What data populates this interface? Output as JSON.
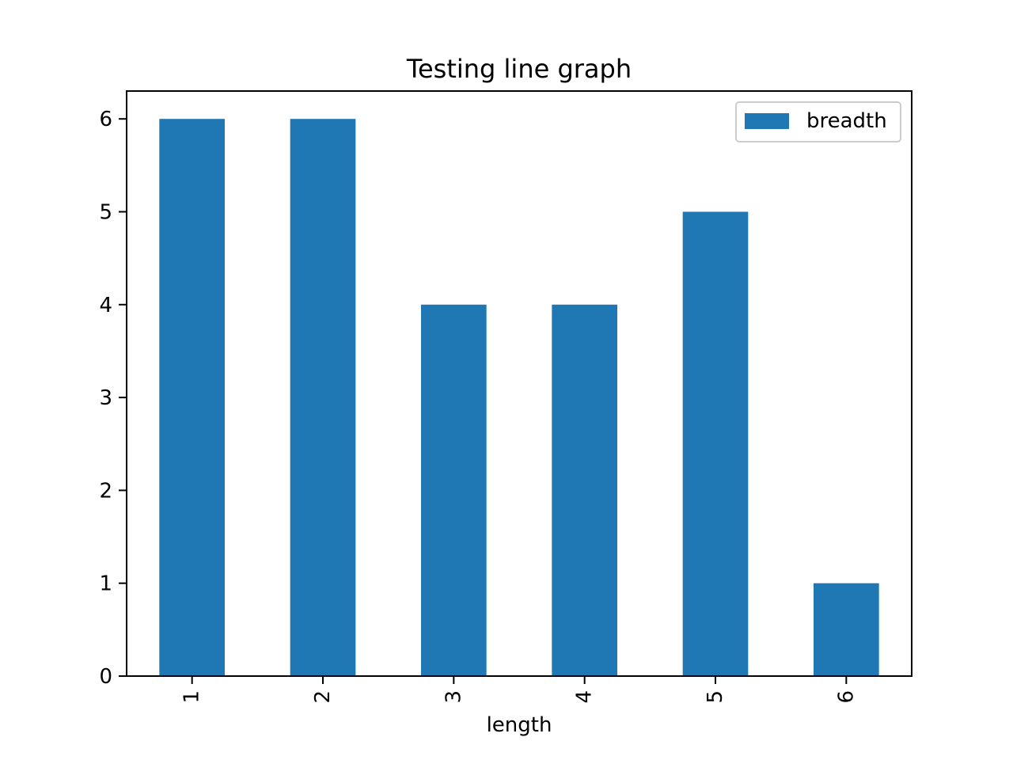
{
  "chart_data": {
    "type": "bar",
    "title": "Testing line graph",
    "xlabel": "length",
    "ylabel": "",
    "categories": [
      "1",
      "2",
      "3",
      "4",
      "5",
      "6"
    ],
    "series": [
      {
        "name": "breadth",
        "values": [
          6,
          6,
          4,
          4,
          5,
          1
        ],
        "color": "#1f77b4"
      }
    ],
    "ylim": [
      0,
      6.3
    ],
    "yticks": [
      "0",
      "1",
      "2",
      "3",
      "4",
      "5",
      "6"
    ],
    "xtick_rotation": "vertical",
    "grid": false,
    "legend_position": "top-right"
  }
}
